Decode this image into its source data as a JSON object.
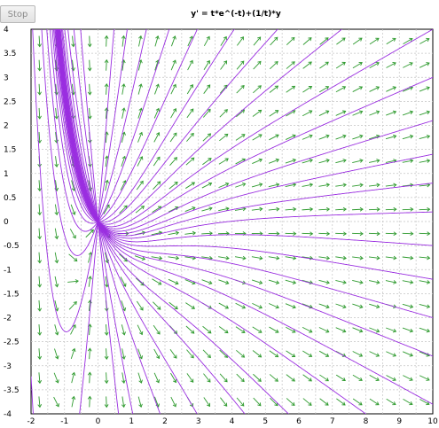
{
  "toolbar": {
    "stop_label": "Stop"
  },
  "chart_data": {
    "type": "vector-field",
    "title": "y' = t*e^(-t)+(1/t)*y",
    "xlim": [
      -2,
      10
    ],
    "ylim": [
      -4,
      4
    ],
    "x_ticks": [
      "-2",
      "-1",
      "0",
      "1",
      "2",
      "3",
      "4",
      "5",
      "6",
      "7",
      "8",
      "9",
      "10"
    ],
    "y_ticks": [
      "4",
      "3.5",
      "3",
      "2.5",
      "2",
      "1.5",
      "1",
      "0.5",
      "0",
      "-0.5",
      "-1",
      "-1.5",
      "-2",
      "-2.5",
      "-3",
      "-3.5",
      "-4"
    ],
    "grid": true,
    "field_color": "#2e9a2e",
    "curve_color": "#9a2ee0",
    "solution_constants": [
      -0.9,
      -0.7,
      -0.5,
      -0.38,
      -0.28,
      -0.2,
      -0.12,
      -0.05,
      0.02,
      0.08,
      0.14,
      0.21,
      0.3,
      0.4,
      0.55,
      0.75,
      1.0,
      1.4,
      2.0,
      3.0,
      5.0,
      9.0,
      -1.3,
      -2.0,
      -3.5,
      -6.0
    ]
  }
}
